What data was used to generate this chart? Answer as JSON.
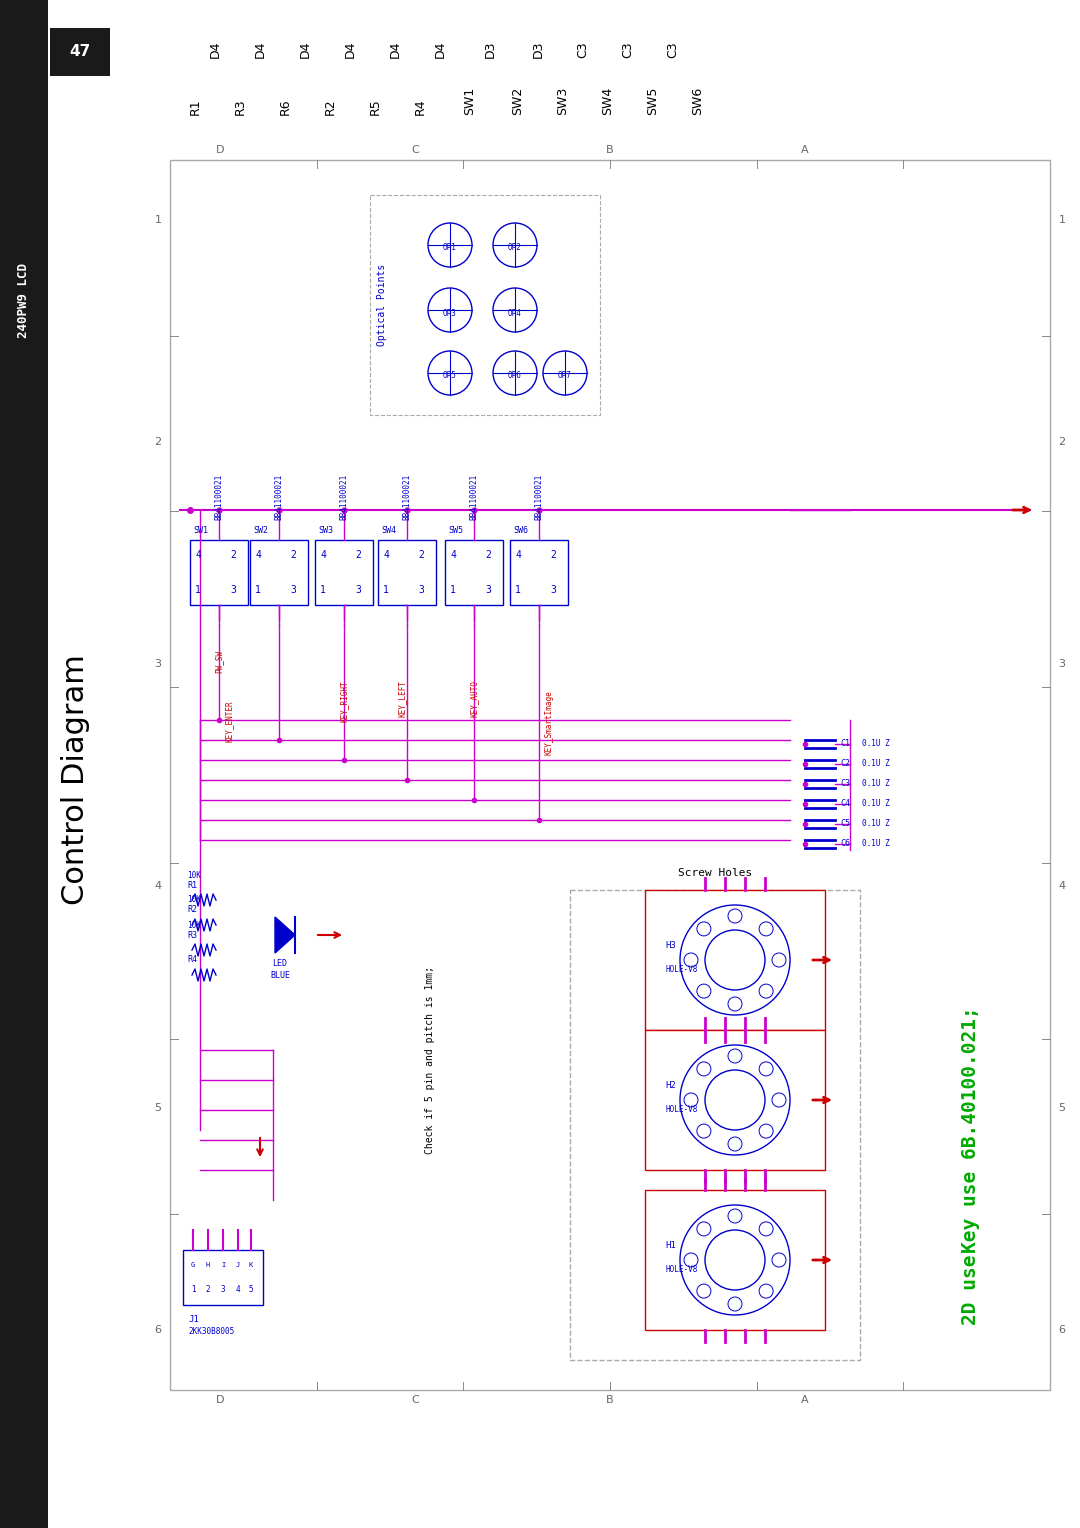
{
  "page_bg": "#ffffff",
  "sidebar_color": "#1a1a1a",
  "sidebar_text_color": "#ffffff",
  "sidebar_label": "240PW9 LCD",
  "page_number": "47",
  "title": "Control Diagram",
  "title_color": "#000000",
  "blue": "#0000cc",
  "magenta": "#cc00cc",
  "dark_red": "#880000",
  "red": "#cc0000",
  "green": "#00aa00",
  "grid_labels_top": [
    "D4",
    "D4",
    "D4",
    "D4",
    "D4",
    "D4",
    "D3",
    "D3",
    "C3",
    "C3",
    "C3"
  ],
  "grid_labels_mid": [
    "R1",
    "R3",
    "R6",
    "R2",
    "R5",
    "R4",
    "SW1",
    "SW2",
    "SW3",
    "SW4",
    "SW5",
    "SW6"
  ],
  "optical_points_label": "Optical Points",
  "key_text_line1": "Key use 6B.40100.021;",
  "key_text_line2": "2D use",
  "screw_holes_label": "Screw Holes",
  "check_text": "Check if 5 pin and pitch is 1mm;"
}
